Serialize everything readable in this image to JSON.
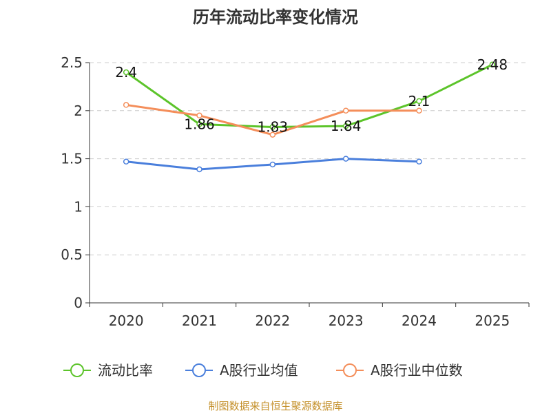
{
  "chart_data": {
    "type": "line",
    "title": "历年流动比率变化情况",
    "categories": [
      "2020",
      "2021",
      "2022",
      "2023",
      "2024",
      "2025"
    ],
    "ylim": [
      0,
      2.5
    ],
    "yticks": [
      "0",
      "0.5",
      "1",
      "1.5",
      "2",
      "2.5"
    ],
    "grid": true,
    "legend_position": "bottom",
    "series": [
      {
        "name": "流动比率",
        "color": "#5cc42a",
        "values": [
          2.4,
          1.86,
          1.83,
          1.84,
          2.1,
          2.48
        ],
        "labels": [
          "2.4",
          "1.86",
          "1.83",
          "1.84",
          "2.1",
          "2.48"
        ]
      },
      {
        "name": "A股行业均值",
        "color": "#4a7fdc",
        "values": [
          1.47,
          1.39,
          1.44,
          1.5,
          1.47,
          null
        ]
      },
      {
        "name": "A股行业中位数",
        "color": "#f48e5a",
        "values": [
          2.06,
          1.95,
          1.75,
          2.0,
          2.0,
          null
        ]
      }
    ]
  },
  "source": {
    "text": "制图数据来自恒生聚源数据库",
    "color": "#c4902a"
  }
}
